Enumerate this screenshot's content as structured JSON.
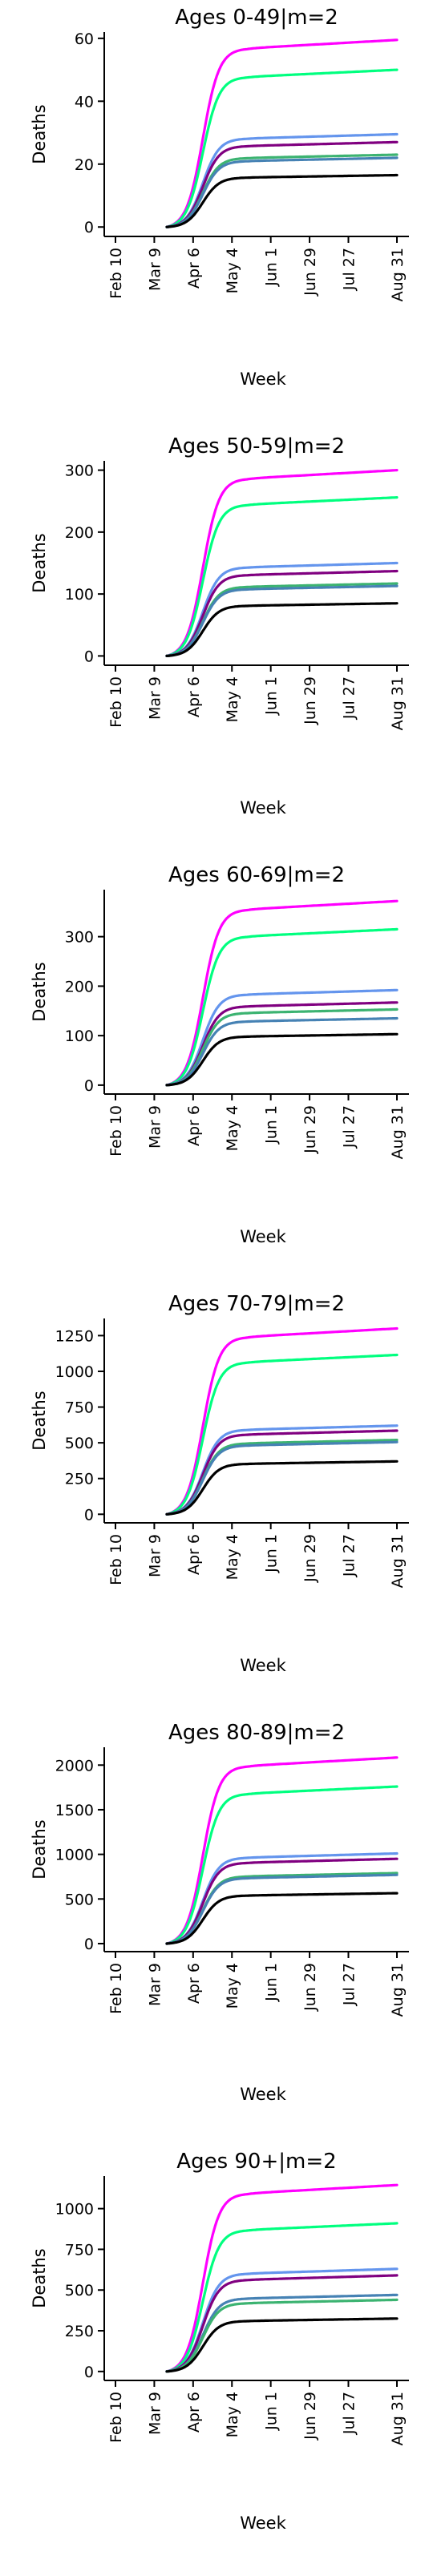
{
  "chart_data": [
    {
      "type": "line",
      "title": "Ages 0-49|m=2",
      "xlabel": "Week",
      "ylabel": "Deaths",
      "x_ticks": [
        "Feb 10",
        "Mar 9",
        "Apr 6",
        "May 4",
        "Jun 1",
        "Jun 29",
        "Jul 27",
        "Aug 31"
      ],
      "yticks": [
        0,
        20,
        40,
        60
      ],
      "ylim": [
        -3,
        62
      ],
      "grid": false,
      "legend": "none",
      "series": [
        {
          "color": "#ff00ff",
          "final": 59.5
        },
        {
          "color": "#00ff7f",
          "final": 50
        },
        {
          "color": "#6495ed",
          "final": 29.5
        },
        {
          "color": "#800080",
          "final": 27
        },
        {
          "color": "#3cb371",
          "final": 23
        },
        {
          "color": "#4682b4",
          "final": 22
        },
        {
          "color": "#000000",
          "final": 16.5
        }
      ]
    },
    {
      "type": "line",
      "title": "Ages 50-59|m=2",
      "xlabel": "Week",
      "ylabel": "Deaths",
      "x_ticks": [
        "Feb 10",
        "Mar 9",
        "Apr 6",
        "May 4",
        "Jun 1",
        "Jun 29",
        "Jul 27",
        "Aug 31"
      ],
      "yticks": [
        0,
        100,
        200,
        300
      ],
      "ylim": [
        -15,
        315
      ],
      "grid": false,
      "legend": "none",
      "series": [
        {
          "color": "#ff00ff",
          "final": 300
        },
        {
          "color": "#00ff7f",
          "final": 256
        },
        {
          "color": "#6495ed",
          "final": 150
        },
        {
          "color": "#800080",
          "final": 137
        },
        {
          "color": "#3cb371",
          "final": 117
        },
        {
          "color": "#4682b4",
          "final": 113
        },
        {
          "color": "#000000",
          "final": 85
        }
      ]
    },
    {
      "type": "line",
      "title": "Ages 60-69|m=2",
      "xlabel": "Week",
      "ylabel": "Deaths",
      "x_ticks": [
        "Feb 10",
        "Mar 9",
        "Apr 6",
        "May 4",
        "Jun 1",
        "Jun 29",
        "Jul 27",
        "Aug 31"
      ],
      "yticks": [
        0,
        100,
        200,
        300
      ],
      "ylim": [
        -18,
        395
      ],
      "grid": false,
      "legend": "none",
      "series": [
        {
          "color": "#ff00ff",
          "final": 372
        },
        {
          "color": "#00ff7f",
          "final": 315
        },
        {
          "color": "#6495ed",
          "final": 192
        },
        {
          "color": "#800080",
          "final": 167
        },
        {
          "color": "#3cb371",
          "final": 153
        },
        {
          "color": "#4682b4",
          "final": 135
        },
        {
          "color": "#000000",
          "final": 103
        }
      ]
    },
    {
      "type": "line",
      "title": "Ages 70-79|m=2",
      "xlabel": "Week",
      "ylabel": "Deaths",
      "x_ticks": [
        "Feb 10",
        "Mar 9",
        "Apr 6",
        "May 4",
        "Jun 1",
        "Jun 29",
        "Jul 27",
        "Aug 31"
      ],
      "yticks": [
        0,
        250,
        500,
        750,
        1000,
        1250
      ],
      "ylim": [
        -60,
        1370
      ],
      "grid": false,
      "legend": "none",
      "series": [
        {
          "color": "#ff00ff",
          "final": 1300
        },
        {
          "color": "#00ff7f",
          "final": 1115
        },
        {
          "color": "#6495ed",
          "final": 620
        },
        {
          "color": "#800080",
          "final": 585
        },
        {
          "color": "#3cb371",
          "final": 520
        },
        {
          "color": "#4682b4",
          "final": 505
        },
        {
          "color": "#000000",
          "final": 370
        }
      ]
    },
    {
      "type": "line",
      "title": "Ages 80-89|m=2",
      "xlabel": "Week",
      "ylabel": "Deaths",
      "x_ticks": [
        "Feb 10",
        "Mar 9",
        "Apr 6",
        "May 4",
        "Jun 1",
        "Jun 29",
        "Jul 27",
        "Aug 31"
      ],
      "yticks": [
        0,
        500,
        1000,
        1500,
        2000
      ],
      "ylim": [
        -90,
        2200
      ],
      "grid": false,
      "legend": "none",
      "series": [
        {
          "color": "#ff00ff",
          "final": 2085
        },
        {
          "color": "#00ff7f",
          "final": 1760
        },
        {
          "color": "#6495ed",
          "final": 1010
        },
        {
          "color": "#800080",
          "final": 950
        },
        {
          "color": "#3cb371",
          "final": 790
        },
        {
          "color": "#4682b4",
          "final": 770
        },
        {
          "color": "#000000",
          "final": 565
        }
      ]
    },
    {
      "type": "line",
      "title": "Ages 90+|m=2",
      "xlabel": "Week",
      "ylabel": "Deaths",
      "x_ticks": [
        "Feb 10",
        "Mar 9",
        "Apr 6",
        "May 4",
        "Jun 1",
        "Jun 29",
        "Jul 27",
        "Aug 31"
      ],
      "yticks": [
        0,
        250,
        500,
        750,
        1000
      ],
      "ylim": [
        -55,
        1200
      ],
      "grid": false,
      "legend": "none",
      "series": [
        {
          "color": "#ff00ff",
          "final": 1145
        },
        {
          "color": "#00ff7f",
          "final": 910
        },
        {
          "color": "#6495ed",
          "final": 630
        },
        {
          "color": "#800080",
          "final": 590
        },
        {
          "color": "#4682b4",
          "final": 470
        },
        {
          "color": "#3cb371",
          "final": 440
        },
        {
          "color": "#000000",
          "final": 325
        }
      ]
    }
  ]
}
